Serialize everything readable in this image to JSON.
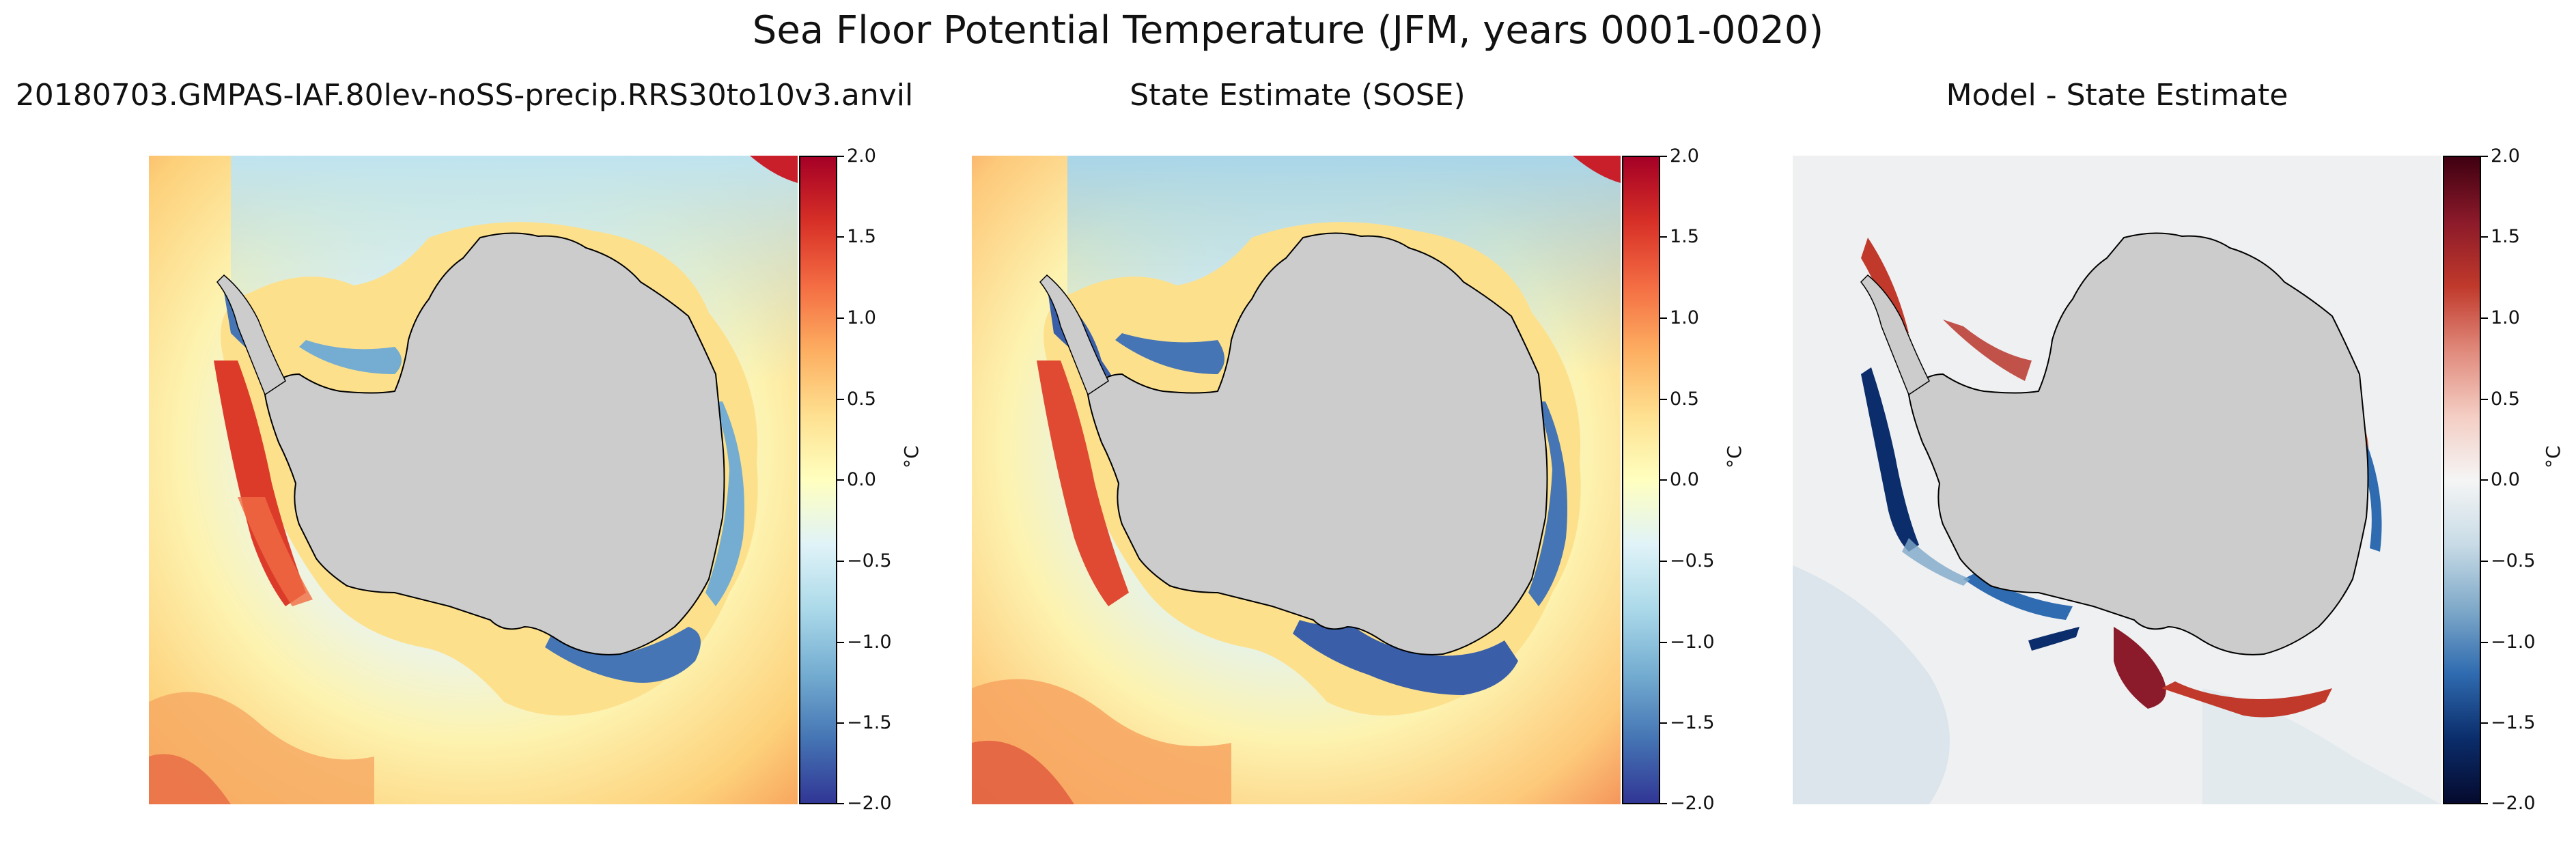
{
  "figure": {
    "title": "Sea Floor Potential Temperature (JFM, years 0001-0020)"
  },
  "panels": [
    {
      "title": "20180703.GMPAS-IAF.80lev-noSS-precip.RRS30to10v3.anvil",
      "colormap": "RdYlBu_r",
      "colorbar": {
        "label": "°C",
        "ticks": [
          "2.0",
          "1.5",
          "1.0",
          "0.5",
          "0.0",
          "−0.5",
          "−1.0",
          "−1.5",
          "−2.0"
        ],
        "colors": [
          "#a50026",
          "#d73027",
          "#f46d43",
          "#fdae61",
          "#fee090",
          "#ffffbf",
          "#e0f3f8",
          "#abd9e9",
          "#74add1",
          "#4575b4",
          "#313695"
        ]
      }
    },
    {
      "title": "State Estimate (SOSE)",
      "colormap": "RdYlBu_r",
      "colorbar": {
        "label": "°C",
        "ticks": [
          "2.0",
          "1.5",
          "1.0",
          "0.5",
          "0.0",
          "−0.5",
          "−1.0",
          "−1.5",
          "−2.0"
        ],
        "colors": [
          "#a50026",
          "#d73027",
          "#f46d43",
          "#fdae61",
          "#fee090",
          "#ffffbf",
          "#e0f3f8",
          "#abd9e9",
          "#74add1",
          "#4575b4",
          "#313695"
        ]
      }
    },
    {
      "title": "Model - State Estimate",
      "colormap": "RdBu_r",
      "colorbar": {
        "label": "°C",
        "ticks": [
          "2.0",
          "1.5",
          "1.0",
          "0.5",
          "0.0",
          "−0.5",
          "−1.0",
          "−1.5",
          "−2.0"
        ],
        "colors": [
          "#3f0011",
          "#8b1a2a",
          "#c0392b",
          "#e08a7c",
          "#f4cdc3",
          "#f5f5f5",
          "#c8dbe6",
          "#7fa9c9",
          "#2f6bb0",
          "#0b2d6b",
          "#050a2e"
        ]
      }
    }
  ]
}
